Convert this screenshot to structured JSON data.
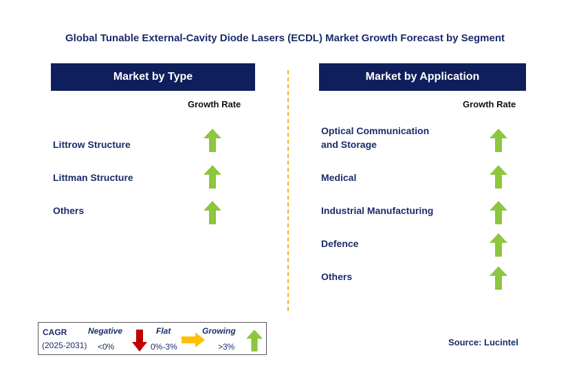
{
  "title": "Global Tunable External-Cavity Diode Lasers (ECDL) Market Growth Forecast by Segment",
  "left_panel": {
    "header": "Market by Type",
    "growth_label": "Growth Rate",
    "items": [
      {
        "label": "Littrow Structure",
        "trend": "growing"
      },
      {
        "label": "Littman Structure",
        "trend": "growing"
      },
      {
        "label": "Others",
        "trend": "growing"
      }
    ]
  },
  "right_panel": {
    "header": "Market by Application",
    "growth_label": "Growth Rate",
    "items": [
      {
        "label_line1": "Optical Communication",
        "label_line2": "and Storage",
        "trend": "growing"
      },
      {
        "label_line1": "Medical",
        "trend": "growing"
      },
      {
        "label_line1": "Industrial Manufacturing",
        "trend": "growing"
      },
      {
        "label_line1": "Defence",
        "trend": "growing"
      },
      {
        "label_line1": "Others",
        "trend": "growing"
      }
    ]
  },
  "legend": {
    "cagr": "CAGR",
    "period": "(2025-2031)",
    "negative_label": "Negative",
    "negative_range": "<0%",
    "flat_label": "Flat",
    "flat_range": "0%-3%",
    "growing_label": "Growing",
    "growing_range": ">3%"
  },
  "source": "Source: Lucintel",
  "colors": {
    "header_bg": "#0f1f5c",
    "text_navy": "#1a2c6b",
    "arrow_up": "#8dc63f",
    "arrow_down": "#c00000",
    "arrow_flat": "#ffc000",
    "divider": "#f5b324"
  }
}
